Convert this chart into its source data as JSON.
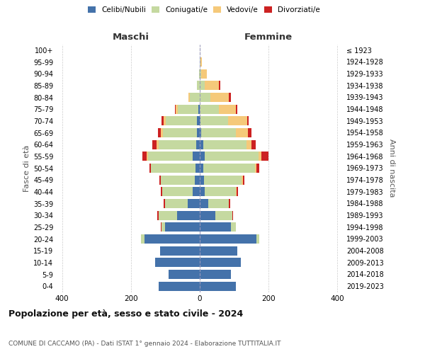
{
  "age_groups": [
    "0-4",
    "5-9",
    "10-14",
    "15-19",
    "20-24",
    "25-29",
    "30-34",
    "35-39",
    "40-44",
    "45-49",
    "50-54",
    "55-59",
    "60-64",
    "65-69",
    "70-74",
    "75-79",
    "80-84",
    "85-89",
    "90-94",
    "95-99",
    "100+"
  ],
  "birth_years": [
    "2019-2023",
    "2014-2018",
    "2009-2013",
    "2004-2008",
    "1999-2003",
    "1994-1998",
    "1989-1993",
    "1984-1988",
    "1979-1983",
    "1974-1978",
    "1969-1973",
    "1964-1968",
    "1959-1963",
    "1954-1958",
    "1949-1953",
    "1944-1948",
    "1939-1943",
    "1934-1938",
    "1929-1933",
    "1924-1928",
    "≤ 1923"
  ],
  "maschi": {
    "celibi": [
      120,
      90,
      130,
      115,
      160,
      100,
      65,
      35,
      20,
      14,
      12,
      20,
      10,
      8,
      8,
      4,
      0,
      0,
      0,
      0,
      0
    ],
    "coniugati": [
      0,
      0,
      0,
      0,
      10,
      12,
      55,
      65,
      90,
      100,
      130,
      130,
      110,
      100,
      90,
      60,
      28,
      8,
      3,
      0,
      0
    ],
    "vedovi": [
      0,
      0,
      0,
      0,
      0,
      0,
      0,
      0,
      0,
      0,
      0,
      5,
      5,
      5,
      8,
      5,
      5,
      0,
      0,
      0,
      0
    ],
    "divorziati": [
      0,
      0,
      0,
      0,
      0,
      2,
      3,
      4,
      4,
      4,
      5,
      12,
      12,
      8,
      5,
      3,
      0,
      0,
      0,
      0,
      0
    ]
  },
  "femmine": {
    "nubili": [
      105,
      90,
      120,
      110,
      165,
      90,
      45,
      25,
      15,
      12,
      10,
      15,
      10,
      5,
      3,
      0,
      0,
      0,
      0,
      0,
      0
    ],
    "coniugate": [
      0,
      0,
      0,
      0,
      8,
      15,
      50,
      60,
      90,
      110,
      150,
      155,
      125,
      100,
      80,
      55,
      30,
      15,
      5,
      2,
      0
    ],
    "vedove": [
      0,
      0,
      0,
      0,
      0,
      0,
      0,
      0,
      2,
      3,
      5,
      10,
      15,
      35,
      55,
      50,
      55,
      40,
      15,
      5,
      0
    ],
    "divorziate": [
      0,
      0,
      0,
      0,
      0,
      0,
      2,
      3,
      4,
      5,
      8,
      20,
      12,
      10,
      5,
      5,
      5,
      5,
      0,
      0,
      0
    ]
  },
  "colors": {
    "celibi": "#4472aa",
    "coniugati": "#c5d9a0",
    "vedovi": "#f5c97a",
    "divorziati": "#cc2222"
  },
  "xlim": 420,
  "title": "Popolazione per età, sesso e stato civile - 2024",
  "subtitle": "COMUNE DI CACCAMO (PA) - Dati ISTAT 1° gennaio 2024 - Elaborazione TUTTITALIA.IT",
  "ylabel_left": "Fasce di età",
  "ylabel_right": "Anni di nascita",
  "xlabel_left": "Maschi",
  "xlabel_right": "Femmine",
  "background_color": "#ffffff",
  "grid_color": "#cccccc"
}
